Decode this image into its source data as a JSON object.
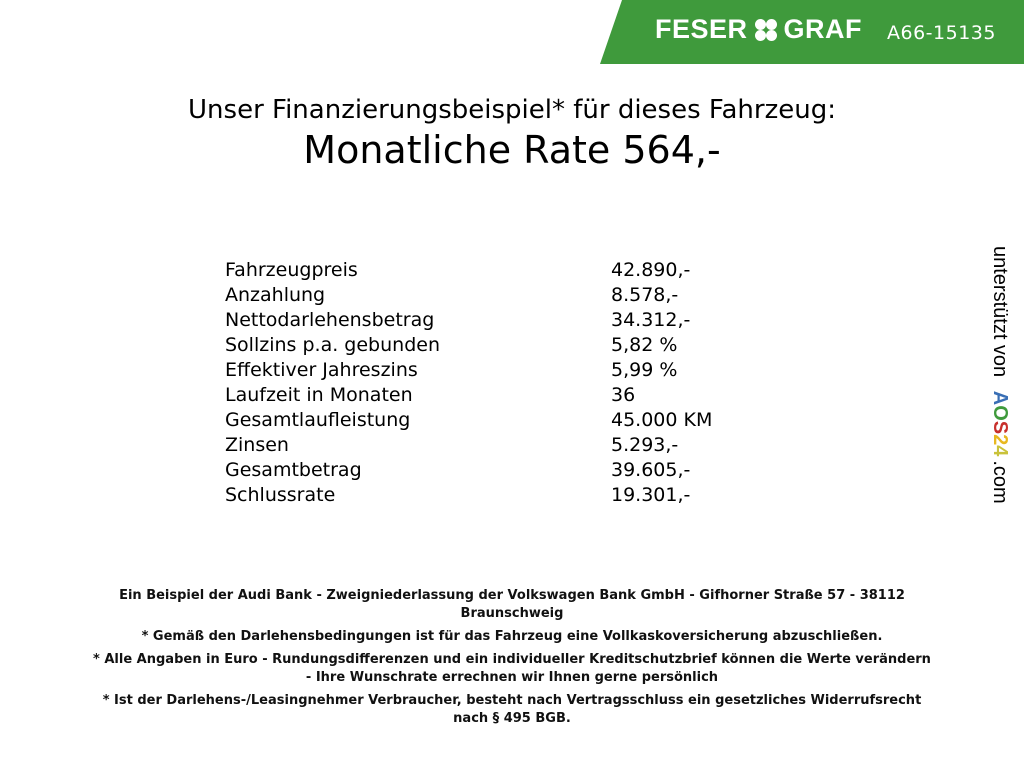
{
  "header": {
    "brand_left": "FESER",
    "brand_right": "GRAF",
    "vehicle_code": "A66-15135",
    "brand_color": "#3f9a3c"
  },
  "title": "Unser Finanzierungsbeispiel* für dieses Fahrzeug:",
  "monthly_rate": "Monatliche Rate 564,-",
  "rows": [
    {
      "label": "Fahrzeugpreis",
      "value": "42.890,-"
    },
    {
      "label": "Anzahlung",
      "value": "8.578,-"
    },
    {
      "label": "Nettodarlehensbetrag",
      "value": "34.312,-"
    },
    {
      "label": "Sollzins p.a. gebunden",
      "value": "5,82 %"
    },
    {
      "label": "Effektiver Jahreszins",
      "value": "5,99 %"
    },
    {
      "label": "Laufzeit in Monaten",
      "value": "36"
    },
    {
      "label": "Gesamtlaufleistung",
      "value": "45.000 KM"
    },
    {
      "label": "Zinsen",
      "value": "5.293,-"
    },
    {
      "label": "Gesamtbetrag",
      "value": "39.605,-"
    },
    {
      "label": "Schlussrate",
      "value": "19.301,-"
    }
  ],
  "side": {
    "text": "unterstützt von",
    "logo": [
      "A",
      "O",
      "S",
      "2",
      "4"
    ],
    "suffix": ".com",
    "logo_colors": [
      "#3a6fb5",
      "#3f9a3c",
      "#c8302c",
      "#e8b820",
      "#c9c23a"
    ]
  },
  "footer": {
    "p1a": "Ein Beispiel der Audi Bank - Zweigniederlassung der Volkswagen Bank GmbH - Gifhorner Straße 57 - 38112",
    "p1b": "Braunschweig",
    "p2": "* Gemäß den Darlehensbedingungen ist für das Fahrzeug eine Vollkaskoversicherung abzuschließen.",
    "p3a": "* Alle Angaben in Euro - Rundungsdifferenzen und ein individueller Kreditschutzbrief können die Werte verändern",
    "p3b": "- Ihre Wunschrate errechnen wir Ihnen gerne persönlich",
    "p4a": "* Ist der Darlehens-/Leasingnehmer Verbraucher, besteht nach Vertragsschluss ein gesetzliches Widerrufsrecht",
    "p4b": "nach § 495 BGB."
  }
}
